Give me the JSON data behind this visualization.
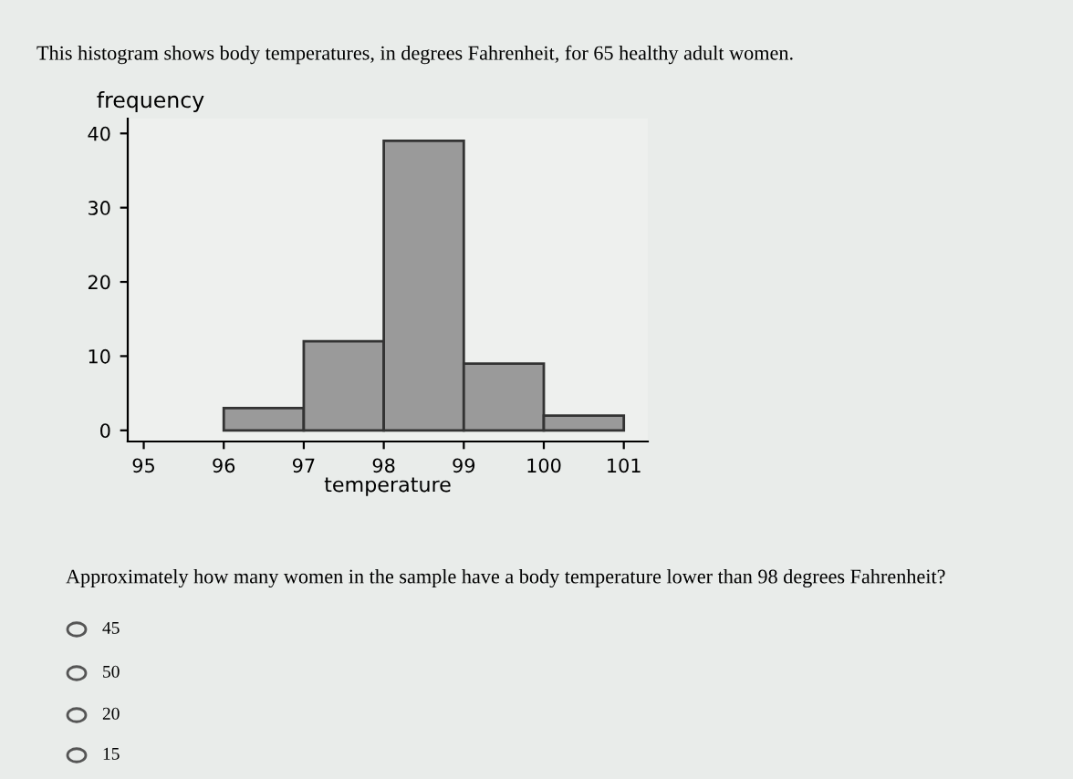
{
  "chart_data": {
    "type": "histogram",
    "title": "This histogram shows body temperatures, in degrees Fahrenheit, for 65 healthy adult women.",
    "xlabel": "temperature",
    "ylabel": "frequency",
    "bins": [
      96,
      97,
      98,
      99,
      100,
      101
    ],
    "values": [
      3,
      12,
      39,
      9,
      2
    ],
    "color": "#9a9a9a",
    "xlim": [
      94.8,
      101.3
    ],
    "xticks": [
      95,
      96,
      97,
      98,
      99,
      100,
      101
    ],
    "ylim": [
      -1.5,
      42
    ],
    "yticks": [
      0,
      10,
      20,
      30,
      40
    ],
    "grid": false,
    "annotations": [
      "Approximately how many women in the sample have a body temperature lower than 98 degrees Fahrenheit?",
      "45",
      "50",
      "20",
      "15"
    ]
  }
}
